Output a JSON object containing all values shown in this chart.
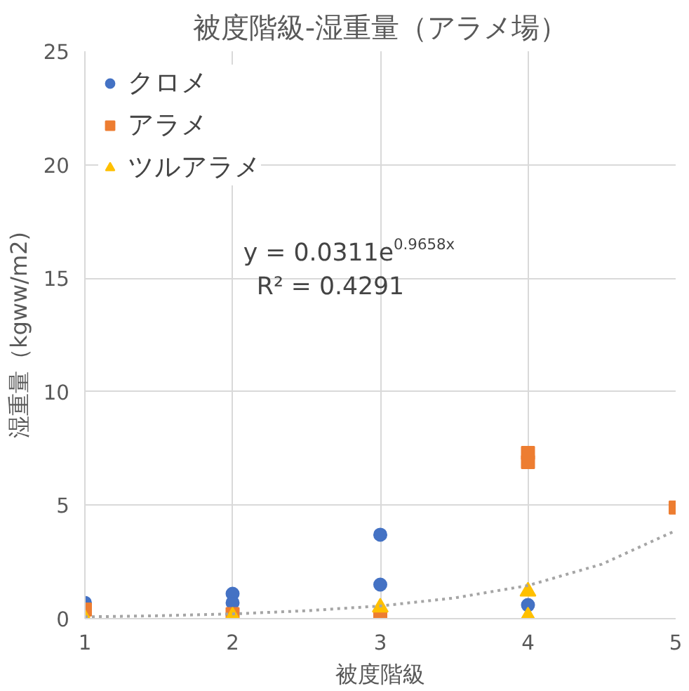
{
  "chart_data": {
    "type": "scatter",
    "title": "被度階級-湿重量（アラメ場）",
    "xlabel": "被度階級",
    "ylabel": "湿重量（kgww/m2)",
    "xlim": [
      1,
      5
    ],
    "xticks": [
      1,
      2,
      3,
      4,
      5
    ],
    "ylim": [
      0,
      25
    ],
    "yticks": [
      0,
      5,
      10,
      15,
      20,
      25
    ],
    "grid": true,
    "legend": "top left",
    "series": [
      {
        "name": "クロメ",
        "color": "#4472c4",
        "marker": "circle",
        "x": [
          1,
          2,
          2,
          3,
          3,
          4
        ],
        "values": [
          0.7,
          1.1,
          0.7,
          3.7,
          1.5,
          0.6
        ]
      },
      {
        "name": "アラメ",
        "color": "#ed7d31",
        "marker": "square",
        "x": [
          1,
          2,
          3,
          4,
          4,
          5
        ],
        "values": [
          0.4,
          0.2,
          0.1,
          7.3,
          6.9,
          4.9
        ]
      },
      {
        "name": "ツルアラメ",
        "color": "#ffc000",
        "marker": "triangle",
        "x": [
          1,
          2,
          3,
          4,
          4
        ],
        "values": [
          0.0,
          0.1,
          0.5,
          1.2,
          0.1
        ]
      },
      {
        "type": "line",
        "color": "#a5a5a5",
        "line_style": "dotted",
        "marker": "none",
        "x": [
          1,
          1.5,
          2,
          2.5,
          3,
          3.5,
          4,
          4.5,
          5
        ],
        "values": [
          0.08,
          0.13,
          0.21,
          0.35,
          0.56,
          0.91,
          1.46,
          2.4,
          3.88
        ]
      }
    ],
    "annotations": [
      "y = 0.0311e$^{0.9658x}$",
      "R² = 0.4291"
    ]
  }
}
